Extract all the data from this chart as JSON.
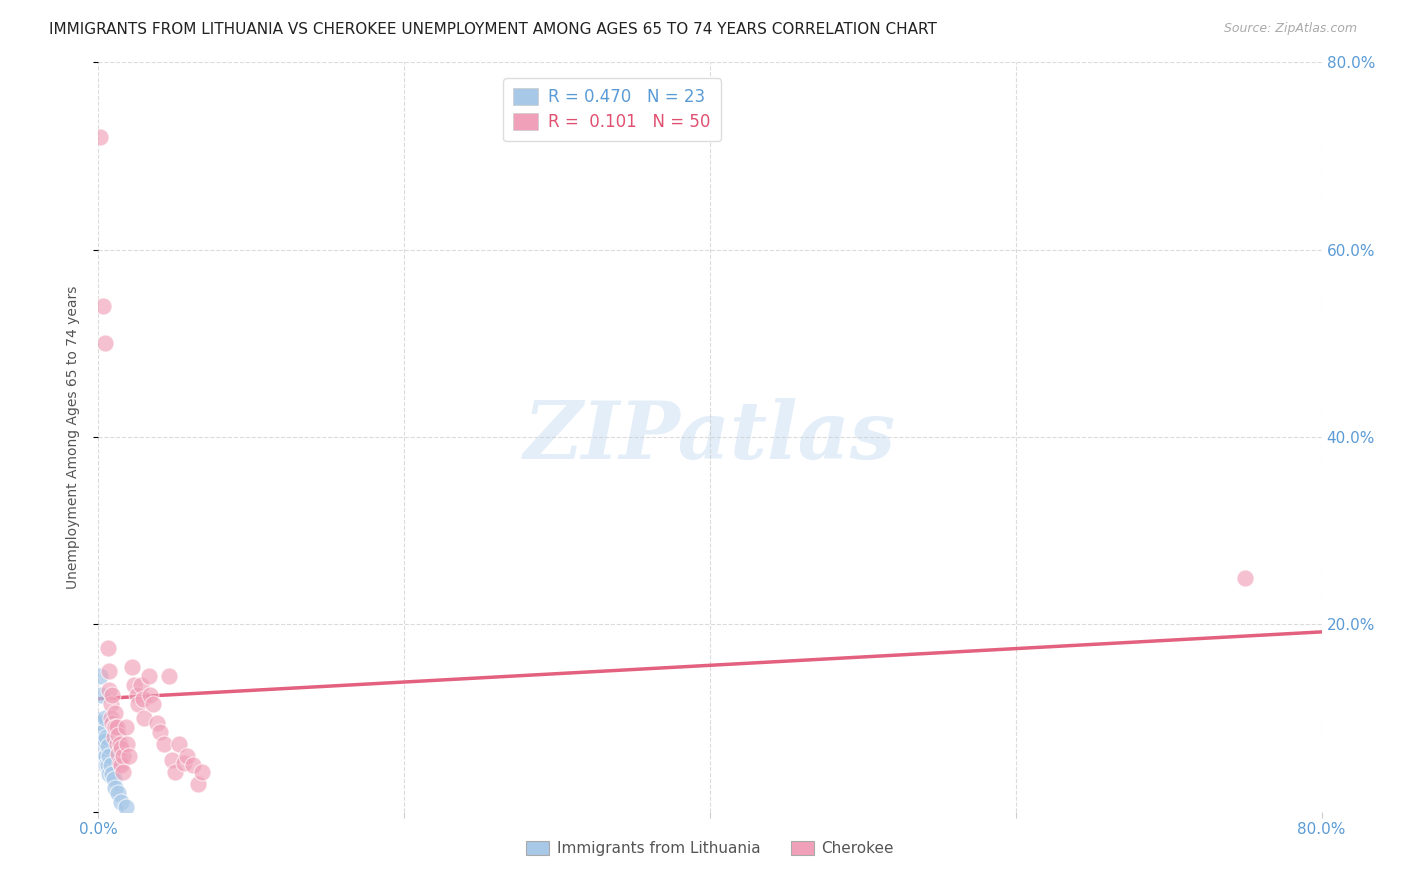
{
  "title": "IMMIGRANTS FROM LITHUANIA VS CHEROKEE UNEMPLOYMENT AMONG AGES 65 TO 74 YEARS CORRELATION CHART",
  "source": "Source: ZipAtlas.com",
  "ylabel": "Unemployment Among Ages 65 to 74 years",
  "xlim": [
    0.0,
    0.8
  ],
  "ylim": [
    0.0,
    0.8
  ],
  "xticks": [
    0.0,
    0.2,
    0.4,
    0.6,
    0.8
  ],
  "xticklabels_show": [
    "0.0%",
    "",
    "",
    "",
    "80.0%"
  ],
  "right_yticks": [
    0.2,
    0.4,
    0.6,
    0.8
  ],
  "right_yticklabels": [
    "20.0%",
    "40.0%",
    "60.0%",
    "80.0%"
  ],
  "grid_color": "#cccccc",
  "background_color": "#ffffff",
  "legend_R1": "0.470",
  "legend_N1": "23",
  "legend_R2": "0.101",
  "legend_N2": "50",
  "blue_color": "#a8c8e8",
  "pink_color": "#f0a0b8",
  "pink_line_color": "#e05070",
  "blue_line_color": "#90b8e0",
  "title_fontsize": 11,
  "axis_label_fontsize": 10,
  "tick_fontsize": 11,
  "tick_color": "#5b9bd5",
  "blue_points": [
    [
      0.001,
      0.145
    ],
    [
      0.002,
      0.125
    ],
    [
      0.002,
      0.095
    ],
    [
      0.003,
      0.085
    ],
    [
      0.003,
      0.075
    ],
    [
      0.003,
      0.065
    ],
    [
      0.004,
      0.1
    ],
    [
      0.004,
      0.075
    ],
    [
      0.004,
      0.06
    ],
    [
      0.005,
      0.08
    ],
    [
      0.005,
      0.06
    ],
    [
      0.005,
      0.05
    ],
    [
      0.006,
      0.07
    ],
    [
      0.006,
      0.05
    ],
    [
      0.007,
      0.06
    ],
    [
      0.007,
      0.04
    ],
    [
      0.008,
      0.05
    ],
    [
      0.009,
      0.04
    ],
    [
      0.01,
      0.035
    ],
    [
      0.011,
      0.025
    ],
    [
      0.013,
      0.02
    ],
    [
      0.015,
      0.01
    ],
    [
      0.018,
      0.005
    ]
  ],
  "pink_points": [
    [
      0.001,
      0.72
    ],
    [
      0.003,
      0.54
    ],
    [
      0.004,
      0.5
    ],
    [
      0.006,
      0.175
    ],
    [
      0.007,
      0.15
    ],
    [
      0.007,
      0.13
    ],
    [
      0.008,
      0.115
    ],
    [
      0.008,
      0.1
    ],
    [
      0.009,
      0.125
    ],
    [
      0.009,
      0.095
    ],
    [
      0.01,
      0.09
    ],
    [
      0.01,
      0.08
    ],
    [
      0.011,
      0.105
    ],
    [
      0.011,
      0.09
    ],
    [
      0.012,
      0.09
    ],
    [
      0.012,
      0.072
    ],
    [
      0.013,
      0.082
    ],
    [
      0.013,
      0.062
    ],
    [
      0.014,
      0.072
    ],
    [
      0.014,
      0.052
    ],
    [
      0.015,
      0.068
    ],
    [
      0.015,
      0.05
    ],
    [
      0.016,
      0.06
    ],
    [
      0.016,
      0.042
    ],
    [
      0.018,
      0.09
    ],
    [
      0.019,
      0.072
    ],
    [
      0.02,
      0.06
    ],
    [
      0.022,
      0.155
    ],
    [
      0.023,
      0.135
    ],
    [
      0.025,
      0.125
    ],
    [
      0.026,
      0.115
    ],
    [
      0.028,
      0.135
    ],
    [
      0.029,
      0.12
    ],
    [
      0.03,
      0.1
    ],
    [
      0.033,
      0.145
    ],
    [
      0.034,
      0.125
    ],
    [
      0.036,
      0.115
    ],
    [
      0.038,
      0.095
    ],
    [
      0.04,
      0.085
    ],
    [
      0.043,
      0.072
    ],
    [
      0.046,
      0.145
    ],
    [
      0.048,
      0.055
    ],
    [
      0.05,
      0.042
    ],
    [
      0.053,
      0.072
    ],
    [
      0.056,
      0.052
    ],
    [
      0.058,
      0.06
    ],
    [
      0.062,
      0.05
    ],
    [
      0.065,
      0.03
    ],
    [
      0.068,
      0.042
    ],
    [
      0.75,
      0.25
    ]
  ]
}
